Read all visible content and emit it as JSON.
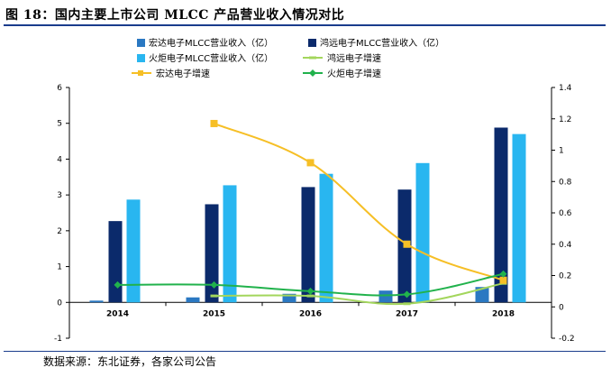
{
  "title": "图 18：国内主要上市公司 MLCC 产品营业收入情况对比",
  "source": "数据来源：东北证券，各家公司公告",
  "colors": {
    "hongda_rev": "#2a78c2",
    "hongyuan_rev": "#0b2a6b",
    "huoju_rev": "#29b6f0",
    "hongyuan_growth": "#a3d65c",
    "hongda_growth": "#f6bf26",
    "huoju_growth": "#21b24c",
    "frame": "#1a3c8c"
  },
  "chart_data": {
    "type": "bar+line",
    "categories": [
      "2014",
      "2015",
      "2016",
      "2017",
      "2018"
    ],
    "y_left": {
      "min": -1,
      "max": 6,
      "ticks": [
        "-1",
        "0",
        "1",
        "2",
        "3",
        "4",
        "5",
        "6"
      ]
    },
    "y_right": {
      "min": -0.2,
      "max": 1.4,
      "ticks": [
        "-0.2",
        "0",
        "0.2",
        "0.4",
        "0.6",
        "0.8",
        "1",
        "1.2",
        "1.4"
      ]
    },
    "bar_series": [
      {
        "name": "宏达电子MLCC营业收入（亿）",
        "color_key": "hongda_rev",
        "values": [
          0.05,
          0.14,
          0.24,
          0.33,
          0.43
        ]
      },
      {
        "name": "鸿远电子MLCC营业收入（亿）",
        "color_key": "hongyuan_rev",
        "values": [
          2.27,
          2.74,
          3.22,
          3.15,
          4.88
        ]
      },
      {
        "name": "火炬电子MLCC营业收入（亿）",
        "color_key": "huoju_rev",
        "values": [
          2.87,
          3.27,
          3.59,
          3.89,
          4.7
        ]
      }
    ],
    "line_series": [
      {
        "name": "鸿远电子增速",
        "color_key": "hongyuan_growth",
        "axis": "right",
        "marker": "dash",
        "values": [
          null,
          0.07,
          0.07,
          0.02,
          0.15
        ]
      },
      {
        "name": "宏达电子增速",
        "color_key": "hongda_growth",
        "axis": "right",
        "marker": "square",
        "values": [
          null,
          1.17,
          0.92,
          0.4,
          0.17
        ]
      },
      {
        "name": "火炬电子增速",
        "color_key": "huoju_growth",
        "axis": "right",
        "marker": "diamond",
        "values": [
          0.14,
          0.14,
          0.1,
          0.08,
          0.21
        ]
      }
    ]
  }
}
